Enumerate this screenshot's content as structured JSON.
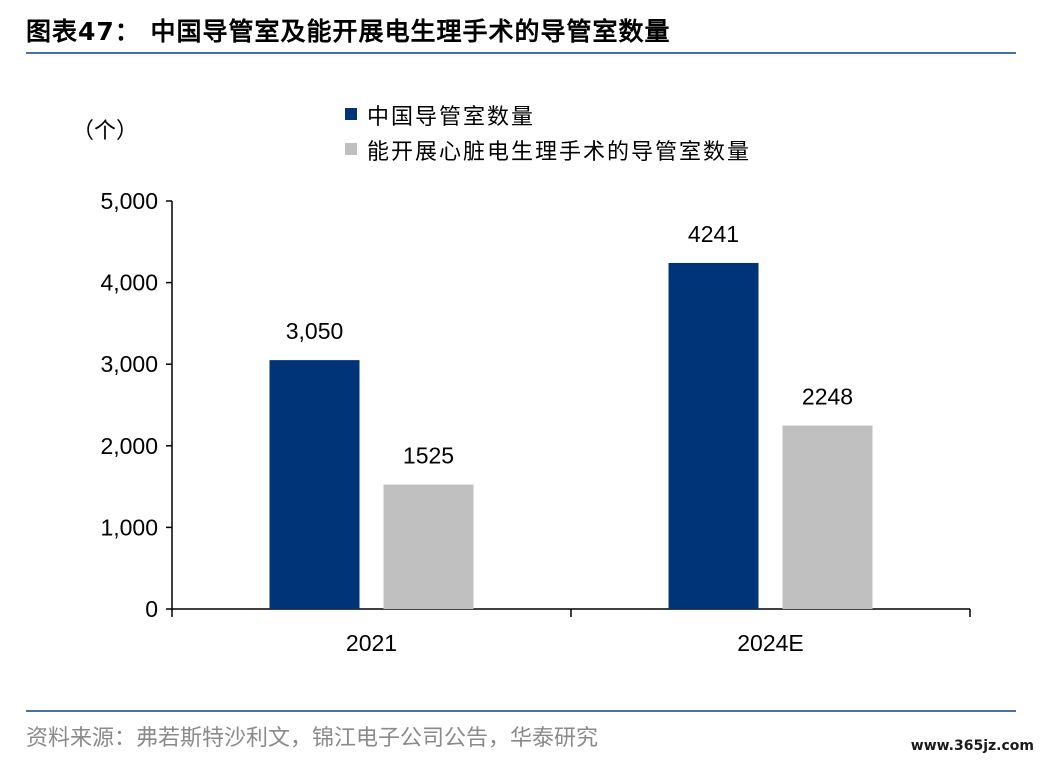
{
  "figure_title": "图表47： 中国导管室及能开展电生理手术的导管室数量",
  "source_note": "资料来源：弗若斯特沙利文，锦江电子公司公告，华泰研究",
  "watermark": "www.365jz.com",
  "colors": {
    "series_primary": "#003478",
    "series_secondary": "#c0c0c0",
    "rule": "#4a6fa5",
    "source_text": "#8a8a8a"
  },
  "chart_data": {
    "type": "bar",
    "unit_label": "（个）",
    "categories": [
      "2021",
      "2024E"
    ],
    "series": [
      {
        "name": "中国导管室数量",
        "values": [
          3050,
          4241
        ],
        "data_labels": [
          "3,050",
          "4241"
        ],
        "color": "#003478"
      },
      {
        "name": "能开展心脏电生理手术的导管室数量",
        "values": [
          1525,
          2248
        ],
        "data_labels": [
          "1525",
          "2248"
        ],
        "color": "#c0c0c0"
      }
    ],
    "ylim": [
      0,
      5000
    ],
    "yticks": [
      0,
      1000,
      2000,
      3000,
      4000,
      5000
    ],
    "ytick_labels": [
      "0",
      "1,000",
      "2,000",
      "3,000",
      "4,000",
      "5,000"
    ],
    "grid": false,
    "legend_position": "top-center"
  }
}
